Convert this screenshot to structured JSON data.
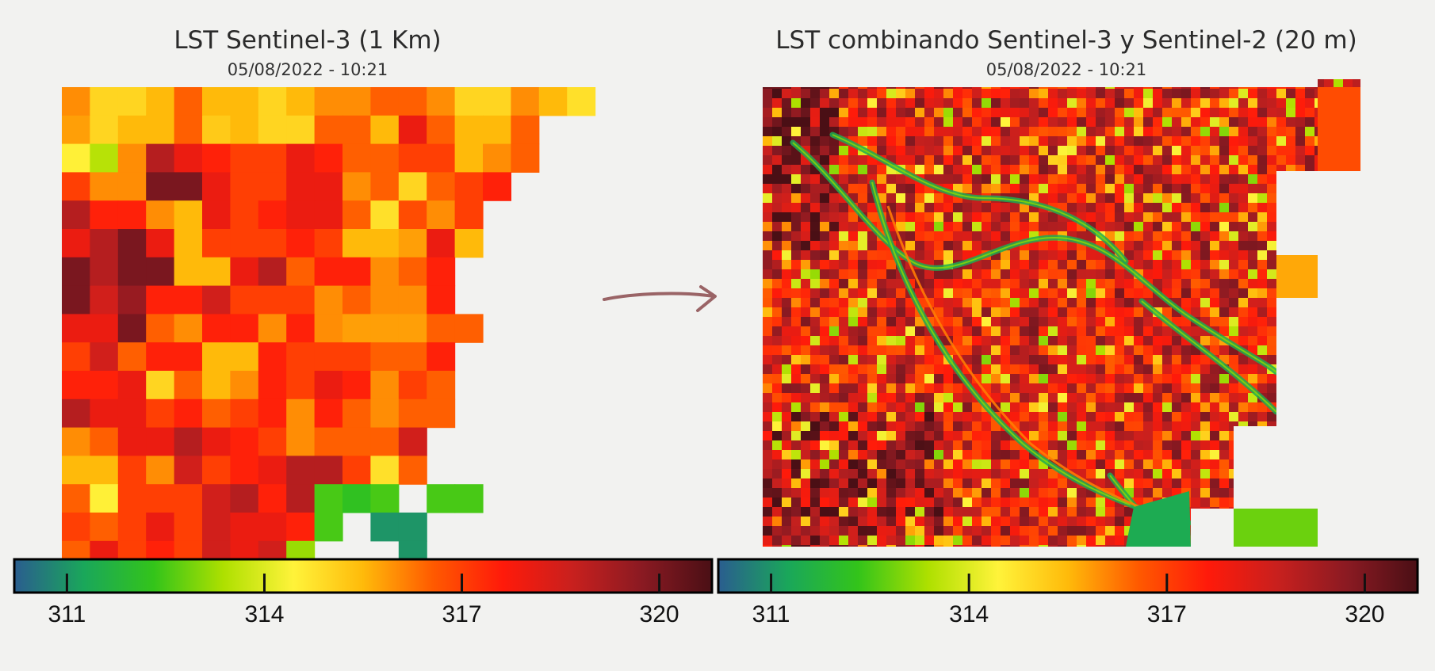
{
  "chart_data": [
    {
      "type": "heatmap",
      "title": "LST Sentinel-3 (1 Km)",
      "subtitle": "05/08/2022 - 10:21",
      "colorbar": {
        "min": 310.2,
        "max": 320.8,
        "ticks": [
          311,
          314,
          317,
          320
        ]
      },
      "cmap": [
        "#2a5d8f",
        "#1aa75a",
        "#33c41a",
        "#aee000",
        "#fff33a",
        "#ffba0a",
        "#ff5a00",
        "#ff1a0a",
        "#c8201e",
        "#8a1a22",
        "#4a0f15"
      ],
      "nodata_label": "",
      "grid": [
        [
          316,
          315,
          315,
          315.5,
          316.5,
          315.5,
          315.5,
          315,
          315.5,
          316,
          316,
          316.5,
          316.5,
          316,
          315,
          315,
          316,
          315.5,
          314.8
        ],
        [
          315.8,
          315,
          315.5,
          315.5,
          316.5,
          315.2,
          315.5,
          315,
          315,
          316.5,
          316.5,
          315.5,
          318,
          316.5,
          315.5,
          315.5,
          316.5,
          null,
          null
        ],
        [
          314.5,
          313.5,
          316,
          319,
          318,
          317.5,
          317,
          317,
          318,
          317.5,
          316.5,
          316.5,
          317,
          317,
          315.5,
          316,
          316.5,
          null,
          null
        ],
        [
          317,
          316,
          316,
          320,
          320,
          318,
          317,
          317,
          318,
          318,
          316,
          316.5,
          315,
          316.5,
          317,
          317.5,
          null,
          null,
          null
        ],
        [
          319,
          317.5,
          317.5,
          316,
          315.5,
          318,
          317,
          317.5,
          318,
          318,
          316.5,
          314.8,
          316.8,
          316,
          317,
          null,
          null,
          null,
          null
        ],
        [
          318,
          319,
          320,
          318,
          315.5,
          317,
          317,
          317,
          317.5,
          317,
          315.5,
          315.5,
          315.8,
          318,
          315.5,
          null,
          null,
          null,
          null
        ],
        [
          320,
          319,
          320,
          320,
          315.5,
          315.5,
          318,
          319,
          316.5,
          317.5,
          317.5,
          316,
          316.5,
          317.5,
          null,
          null,
          null,
          null,
          null
        ],
        [
          320,
          318.5,
          319.5,
          317.5,
          317.5,
          318.5,
          317,
          317,
          317,
          316,
          316.5,
          316,
          316,
          317.5,
          null,
          null,
          null,
          null,
          null
        ],
        [
          318,
          318,
          320,
          316.5,
          316,
          317.5,
          317.5,
          316,
          317.5,
          316,
          315.8,
          315.8,
          315.8,
          316.5,
          316.5,
          null,
          null,
          null,
          null
        ],
        [
          317,
          318.5,
          316.5,
          317.5,
          317.5,
          315.5,
          315.5,
          317.5,
          317,
          317,
          317,
          316.5,
          316.5,
          317.5,
          null,
          null,
          null,
          null,
          null
        ],
        [
          317.5,
          317.5,
          318,
          315,
          316.5,
          315.5,
          316,
          317.5,
          317,
          318,
          317.5,
          316,
          317,
          316.5,
          null,
          null,
          null,
          null,
          null
        ],
        [
          319,
          318,
          318,
          317,
          317.5,
          316.5,
          317,
          317.5,
          316,
          317.5,
          316.5,
          316,
          316.5,
          316.5,
          null,
          null,
          null,
          null,
          null
        ],
        [
          316,
          316.5,
          318,
          318,
          319,
          318,
          317.5,
          317,
          316,
          316.5,
          316.5,
          316.5,
          318.5,
          null,
          null,
          null,
          null,
          null,
          null
        ],
        [
          315.5,
          315.5,
          317,
          316,
          318.5,
          317,
          317.5,
          318,
          319,
          319,
          317,
          314.8,
          316.5,
          null,
          null,
          null,
          null,
          null,
          null
        ],
        [
          316.5,
          314.5,
          317,
          317,
          317,
          318.5,
          319,
          317.5,
          319,
          312.5,
          312.2,
          312.5,
          null,
          312.5,
          312.5,
          null,
          null,
          null,
          null
        ],
        [
          317,
          316.5,
          317,
          318,
          317,
          318.5,
          318,
          318,
          317.5,
          312.5,
          null,
          311,
          311,
          null,
          null,
          null,
          null,
          null,
          null
        ],
        [
          316.5,
          318,
          317,
          317.5,
          317,
          318.5,
          318,
          318.5,
          313.2,
          null,
          null,
          null,
          311,
          null,
          null,
          null,
          null,
          null,
          null
        ]
      ]
    },
    {
      "type": "heatmap",
      "title": "LST combinando Sentinel-3 y Sentinel-2 (20 m)",
      "subtitle": "05/08/2022 - 10:21",
      "colorbar": {
        "min": 310.2,
        "max": 320.8,
        "ticks": [
          311,
          314,
          317,
          320
        ]
      }
    }
  ],
  "arrow_color": "#9a6466"
}
